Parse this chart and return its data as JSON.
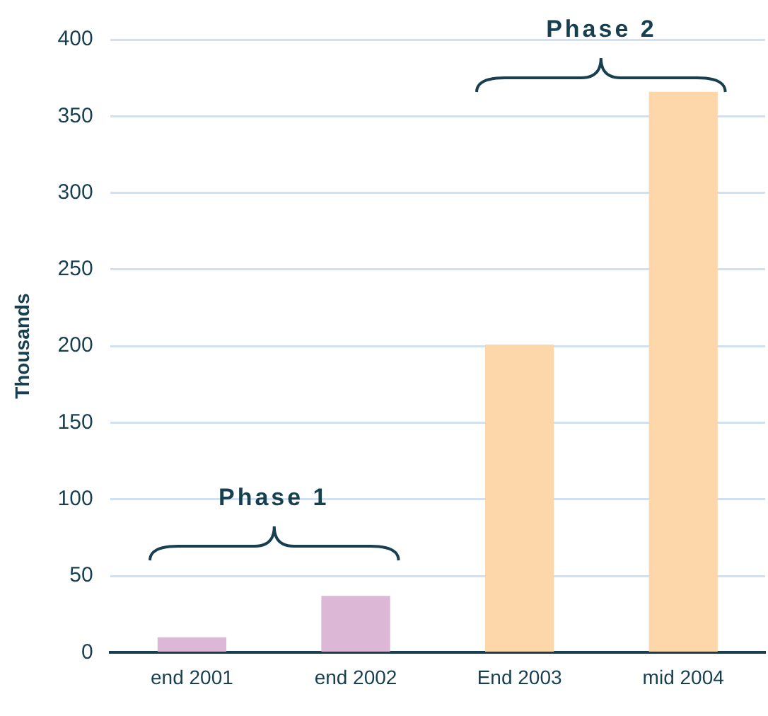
{
  "chart_data": {
    "type": "bar",
    "ylabel": "Thousands",
    "categories": [
      "end 2001",
      "end 2002",
      "End 2003",
      "mid 2004"
    ],
    "values": [
      10,
      37,
      201,
      366
    ],
    "colors": [
      "#dcb8d6",
      "#dcb8d6",
      "#fdd6aa",
      "#fdd6aa"
    ],
    "ylim": [
      0,
      400
    ],
    "yticks": [
      0,
      50,
      100,
      150,
      200,
      250,
      300,
      350,
      400
    ],
    "grid": "y",
    "annotations": [
      "Phase 1",
      "Phase 2"
    ]
  }
}
